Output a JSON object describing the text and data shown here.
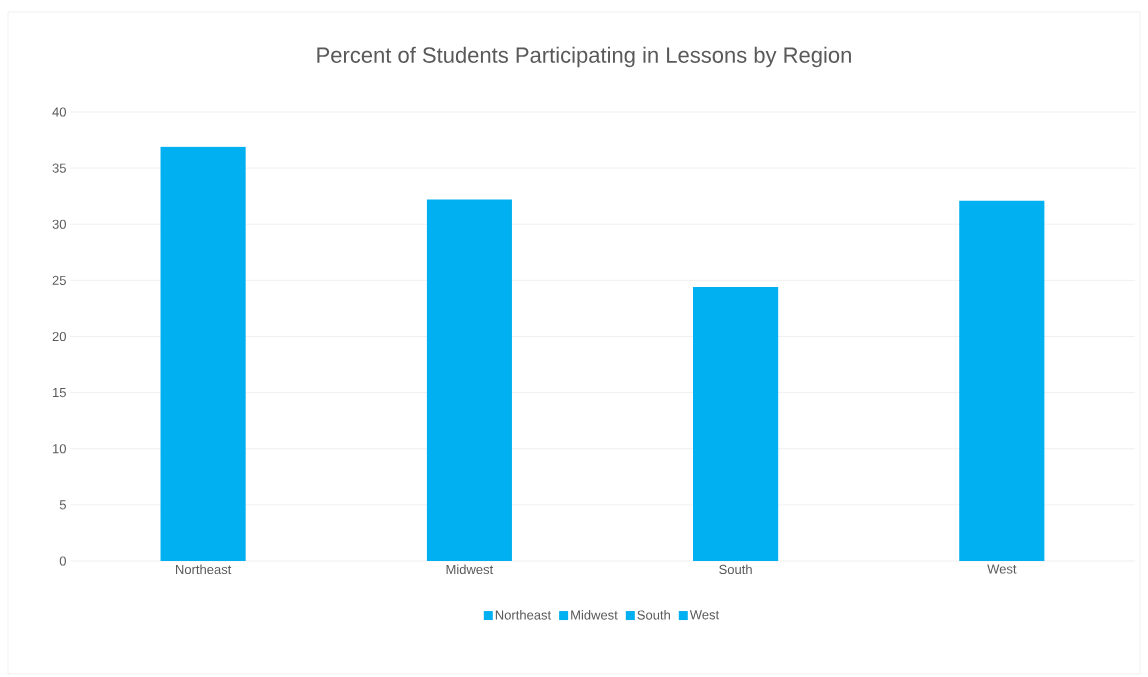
{
  "chart_data": {
    "type": "bar",
    "title": "Percent of Students Participating in Lessons by Region",
    "categories": [
      "Northeast",
      "Midwest",
      "South",
      "West"
    ],
    "series": [
      {
        "name": "Northeast",
        "color": "#00b0f0",
        "values": [
          36.9,
          null,
          null,
          null
        ]
      },
      {
        "name": "Midwest",
        "color": "#00b0f0",
        "values": [
          null,
          32.2,
          null,
          null
        ]
      },
      {
        "name": "South",
        "color": "#00b0f0",
        "values": [
          null,
          null,
          24.4,
          null
        ]
      },
      {
        "name": "West",
        "color": "#00b0f0",
        "values": [
          null,
          null,
          null,
          32.1
        ]
      }
    ],
    "ylim": [
      0,
      40
    ],
    "yticks": [
      0,
      5,
      10,
      15,
      20,
      25,
      30,
      35,
      40
    ],
    "grid": "y",
    "legend": "bottom"
  }
}
